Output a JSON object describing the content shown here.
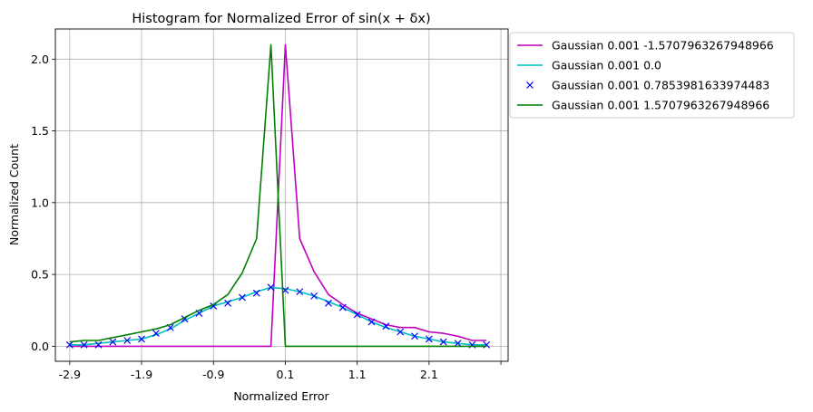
{
  "chart_data": {
    "type": "line",
    "title": "Histogram for Normalized Error of sin(x + δx)",
    "xlabel": "Normalized Error",
    "ylabel": "Normalized Count",
    "xlim": [
      -3.1,
      3.2
    ],
    "ylim": [
      -0.105,
      2.21
    ],
    "xticks": [
      -2.9,
      -1.9,
      -0.9,
      0.1,
      1.1,
      2.1,
      3.1
    ],
    "xtick_labels": [
      "-2.9",
      "-1.9",
      "-0.9",
      "0.1",
      "1.1",
      "2.1",
      ""
    ],
    "yticks": [
      0.0,
      0.5,
      1.0,
      1.5,
      2.0
    ],
    "ytick_labels": [
      "0.0",
      "0.5",
      "1.0",
      "1.5",
      "2.0"
    ],
    "grid": true,
    "legend_position": "outside-top-right",
    "x": [
      -2.9,
      -2.7,
      -2.5,
      -2.3,
      -2.1,
      -1.9,
      -1.7,
      -1.5,
      -1.3,
      -1.1,
      -0.9,
      -0.7,
      -0.5,
      -0.3,
      -0.1,
      0.1,
      0.3,
      0.5,
      0.7,
      0.9,
      1.1,
      1.3,
      1.5,
      1.7,
      1.9,
      2.1,
      2.3,
      2.5,
      2.7,
      2.9
    ],
    "series": [
      {
        "name": "Gaussian 0.001 -1.5707963267948966",
        "color": "#bf00bf",
        "style": "line",
        "values": [
          0.0,
          0.0,
          0.0,
          0.0,
          0.0,
          0.0,
          0.0,
          0.0,
          0.0,
          0.0,
          0.0,
          0.0,
          0.0,
          0.0,
          0.0,
          2.1,
          0.75,
          0.52,
          0.36,
          0.29,
          0.23,
          0.19,
          0.15,
          0.13,
          0.13,
          0.1,
          0.09,
          0.07,
          0.04,
          0.04
        ]
      },
      {
        "name": "Gaussian 0.001 0.0",
        "color": "#00bfbf",
        "style": "line",
        "values": [
          0.01,
          0.01,
          0.02,
          0.03,
          0.04,
          0.05,
          0.08,
          0.12,
          0.18,
          0.23,
          0.28,
          0.31,
          0.34,
          0.38,
          0.41,
          0.4,
          0.38,
          0.35,
          0.31,
          0.27,
          0.22,
          0.17,
          0.13,
          0.1,
          0.07,
          0.05,
          0.03,
          0.02,
          0.01,
          0.01
        ]
      },
      {
        "name": "Gaussian 0.001 0.7853981633974483",
        "color": "#0000ff",
        "style": "marker-x",
        "values": [
          0.01,
          0.01,
          0.01,
          0.03,
          0.04,
          0.05,
          0.09,
          0.13,
          0.19,
          0.23,
          0.28,
          0.3,
          0.34,
          0.37,
          0.41,
          0.39,
          0.38,
          0.35,
          0.3,
          0.27,
          0.22,
          0.17,
          0.14,
          0.1,
          0.07,
          0.05,
          0.03,
          0.02,
          0.01,
          0.01
        ]
      },
      {
        "name": "Gaussian 0.001 1.5707963267948966",
        "color": "#008000",
        "style": "line",
        "values": [
          0.03,
          0.04,
          0.04,
          0.06,
          0.08,
          0.1,
          0.12,
          0.15,
          0.2,
          0.25,
          0.29,
          0.36,
          0.51,
          0.75,
          2.1,
          0.0,
          0.0,
          0.0,
          0.0,
          0.0,
          0.0,
          0.0,
          0.0,
          0.0,
          0.0,
          0.0,
          0.0,
          0.0,
          0.0,
          0.0
        ]
      }
    ]
  }
}
